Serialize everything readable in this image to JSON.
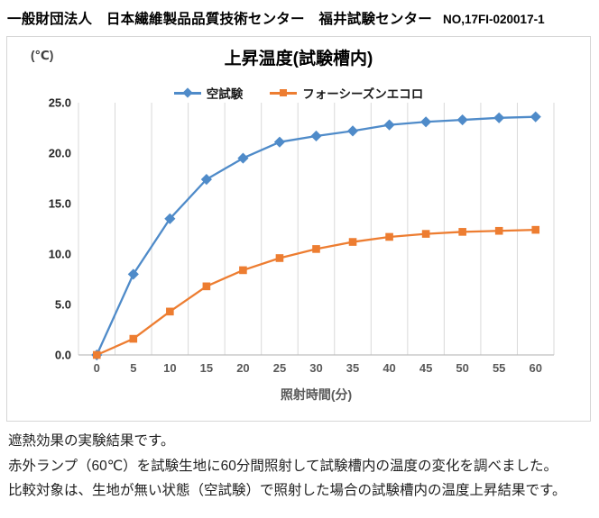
{
  "header": {
    "organization": "一般財団法人　日本繊維製品品質技術センター　福井試験センター",
    "report_no": "NO,17FI-020017-1"
  },
  "chart_data": {
    "type": "line",
    "title": "上昇温度(試験槽内)",
    "xlabel": "照射時間(分)",
    "ylabel": "(℃)",
    "x": [
      0,
      5,
      10,
      15,
      20,
      25,
      30,
      35,
      40,
      45,
      50,
      55,
      60
    ],
    "series": [
      {
        "name": "空試験",
        "marker": "diamond",
        "color": "#4f8bc9",
        "values": [
          0.0,
          8.0,
          13.5,
          17.4,
          19.5,
          21.1,
          21.7,
          22.2,
          22.8,
          23.1,
          23.3,
          23.5,
          23.6
        ]
      },
      {
        "name": "フォーシーズンエコロ",
        "marker": "square",
        "color": "#ed7d31",
        "values": [
          0.0,
          1.6,
          4.3,
          6.8,
          8.4,
          9.6,
          10.5,
          11.2,
          11.7,
          12.0,
          12.2,
          12.3,
          12.4
        ]
      }
    ],
    "ylim": [
      0,
      25
    ],
    "yticks": [
      "0.0",
      "5.0",
      "10.0",
      "15.0",
      "20.0",
      "25.0"
    ],
    "grid": "vertical-only",
    "legend_position": "top-center",
    "colors": {
      "gridline": "#d9d9d9",
      "axis_line": "#bfbfbf"
    }
  },
  "notes": {
    "line1": "遮熱効果の実験結果です。",
    "line2": "赤外ランプ（60℃）を試験生地に60分間照射して試験槽内の温度の変化を調べました。",
    "line3": "比較対象は、生地が無い状態（空試験）で照射した場合の試験槽内の温度上昇結果です。"
  }
}
